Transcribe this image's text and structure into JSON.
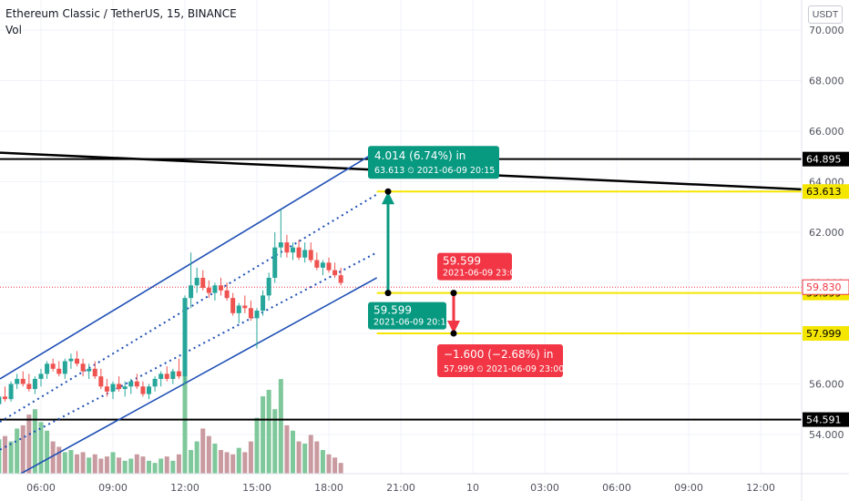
{
  "header": {
    "symbol_line": "Ethereum Classic / TetherUS, 15, BINANCE",
    "volume_label": "Vol"
  },
  "currency_label": "USDT",
  "colors": {
    "up": "#26a69a",
    "down": "#ef5350",
    "vol_up": "#7fc89b",
    "vol_down": "#c99aa0",
    "channel": "#1e4fb5",
    "horizontal": "#000000",
    "yellow": "#f5e600",
    "measure_up": "#089981",
    "measure_down": "#f23645",
    "last_price": "#f23645"
  },
  "chart_data": {
    "type": "candlestick",
    "symbol": "Ethereum Classic / TetherUS",
    "interval": "15",
    "exchange": "BINANCE",
    "ylim": [
      53.2,
      71.0
    ],
    "y_ticks": [
      "70.000",
      "68.000",
      "66.000",
      "64.000",
      "62.000",
      "60.000",
      "58.000",
      "56.000",
      "54.000"
    ],
    "x_ticks": [
      "06:00",
      "09:00",
      "12:00",
      "15:00",
      "18:00",
      "21:00",
      "10",
      "03:00",
      "06:00",
      "09:00",
      "12:00"
    ],
    "x_tick_hours": [
      6,
      9,
      12,
      15,
      18,
      21,
      24,
      27,
      30,
      33,
      36
    ],
    "x_range_hours": [
      3.7,
      37.5
    ],
    "candles": [
      {
        "t": 3.75,
        "o": 54.9,
        "h": 55.1,
        "l": 54.5,
        "c": 54.7
      },
      {
        "t": 4.0,
        "o": 54.7,
        "h": 55.3,
        "l": 54.6,
        "c": 55.2
      },
      {
        "t": 4.25,
        "o": 55.2,
        "h": 55.6,
        "l": 55.0,
        "c": 55.5
      },
      {
        "t": 4.5,
        "o": 55.5,
        "h": 55.9,
        "l": 55.3,
        "c": 55.4
      },
      {
        "t": 4.75,
        "o": 55.4,
        "h": 56.1,
        "l": 55.3,
        "c": 56.0
      },
      {
        "t": 5.0,
        "o": 56.0,
        "h": 56.4,
        "l": 55.8,
        "c": 56.2
      },
      {
        "t": 5.25,
        "o": 56.2,
        "h": 56.5,
        "l": 55.9,
        "c": 56.0
      },
      {
        "t": 5.5,
        "o": 56.0,
        "h": 56.4,
        "l": 55.7,
        "c": 55.8
      },
      {
        "t": 5.75,
        "o": 55.8,
        "h": 56.3,
        "l": 55.6,
        "c": 56.2
      },
      {
        "t": 6.0,
        "o": 56.2,
        "h": 56.6,
        "l": 55.9,
        "c": 56.4
      },
      {
        "t": 6.25,
        "o": 56.4,
        "h": 56.9,
        "l": 56.2,
        "c": 56.8
      },
      {
        "t": 6.5,
        "o": 56.8,
        "h": 57.0,
        "l": 56.5,
        "c": 56.6
      },
      {
        "t": 6.75,
        "o": 56.6,
        "h": 56.9,
        "l": 56.3,
        "c": 56.4
      },
      {
        "t": 7.0,
        "o": 56.4,
        "h": 57.0,
        "l": 56.2,
        "c": 56.9
      },
      {
        "t": 7.25,
        "o": 56.9,
        "h": 57.2,
        "l": 56.6,
        "c": 57.0
      },
      {
        "t": 7.5,
        "o": 57.0,
        "h": 57.3,
        "l": 56.7,
        "c": 56.8
      },
      {
        "t": 7.75,
        "o": 56.8,
        "h": 57.0,
        "l": 56.3,
        "c": 56.5
      },
      {
        "t": 8.0,
        "o": 56.5,
        "h": 56.8,
        "l": 56.2,
        "c": 56.6
      },
      {
        "t": 8.25,
        "o": 56.6,
        "h": 56.9,
        "l": 56.2,
        "c": 56.3
      },
      {
        "t": 8.5,
        "o": 56.3,
        "h": 56.6,
        "l": 55.8,
        "c": 55.9
      },
      {
        "t": 8.75,
        "o": 55.9,
        "h": 56.2,
        "l": 55.5,
        "c": 55.7
      },
      {
        "t": 9.0,
        "o": 55.7,
        "h": 56.1,
        "l": 55.4,
        "c": 56.0
      },
      {
        "t": 9.25,
        "o": 56.0,
        "h": 56.3,
        "l": 55.7,
        "c": 55.8
      },
      {
        "t": 9.5,
        "o": 55.8,
        "h": 56.1,
        "l": 55.5,
        "c": 55.9
      },
      {
        "t": 9.75,
        "o": 55.9,
        "h": 56.2,
        "l": 55.6,
        "c": 56.1
      },
      {
        "t": 10.0,
        "o": 56.1,
        "h": 56.4,
        "l": 55.8,
        "c": 55.9
      },
      {
        "t": 10.25,
        "o": 55.9,
        "h": 56.1,
        "l": 55.5,
        "c": 55.6
      },
      {
        "t": 10.5,
        "o": 55.6,
        "h": 56.0,
        "l": 55.4,
        "c": 55.9
      },
      {
        "t": 10.75,
        "o": 55.9,
        "h": 56.3,
        "l": 55.7,
        "c": 56.2
      },
      {
        "t": 11.0,
        "o": 56.2,
        "h": 56.5,
        "l": 55.9,
        "c": 56.4
      },
      {
        "t": 11.25,
        "o": 56.4,
        "h": 56.7,
        "l": 56.1,
        "c": 56.2
      },
      {
        "t": 11.5,
        "o": 56.2,
        "h": 56.6,
        "l": 56.0,
        "c": 56.5
      },
      {
        "t": 11.75,
        "o": 56.5,
        "h": 57.0,
        "l": 56.2,
        "c": 56.3
      },
      {
        "t": 12.0,
        "o": 56.3,
        "h": 59.5,
        "l": 56.0,
        "c": 59.4
      },
      {
        "t": 12.25,
        "o": 59.4,
        "h": 61.2,
        "l": 59.0,
        "c": 59.9
      },
      {
        "t": 12.5,
        "o": 59.9,
        "h": 60.6,
        "l": 59.6,
        "c": 60.2
      },
      {
        "t": 12.75,
        "o": 60.2,
        "h": 60.5,
        "l": 59.7,
        "c": 59.8
      },
      {
        "t": 13.0,
        "o": 59.8,
        "h": 60.1,
        "l": 59.4,
        "c": 59.6
      },
      {
        "t": 13.25,
        "o": 59.6,
        "h": 60.0,
        "l": 59.3,
        "c": 59.9
      },
      {
        "t": 13.5,
        "o": 59.9,
        "h": 60.2,
        "l": 59.5,
        "c": 59.7
      },
      {
        "t": 13.75,
        "o": 59.7,
        "h": 60.0,
        "l": 59.3,
        "c": 59.4
      },
      {
        "t": 14.0,
        "o": 59.4,
        "h": 59.6,
        "l": 58.7,
        "c": 58.8
      },
      {
        "t": 14.25,
        "o": 58.8,
        "h": 59.2,
        "l": 58.4,
        "c": 59.1
      },
      {
        "t": 14.5,
        "o": 59.1,
        "h": 59.5,
        "l": 58.8,
        "c": 59.0
      },
      {
        "t": 14.75,
        "o": 59.0,
        "h": 59.3,
        "l": 58.5,
        "c": 58.6
      },
      {
        "t": 15.0,
        "o": 58.6,
        "h": 59.0,
        "l": 57.4,
        "c": 58.9
      },
      {
        "t": 15.25,
        "o": 58.9,
        "h": 59.7,
        "l": 58.7,
        "c": 59.5
      },
      {
        "t": 15.5,
        "o": 59.5,
        "h": 60.4,
        "l": 59.3,
        "c": 60.2
      },
      {
        "t": 15.75,
        "o": 60.2,
        "h": 62.0,
        "l": 60.0,
        "c": 61.4
      },
      {
        "t": 16.0,
        "o": 61.4,
        "h": 62.9,
        "l": 61.0,
        "c": 61.6
      },
      {
        "t": 16.25,
        "o": 61.6,
        "h": 61.9,
        "l": 61.0,
        "c": 61.2
      },
      {
        "t": 16.5,
        "o": 61.2,
        "h": 61.6,
        "l": 60.9,
        "c": 61.4
      },
      {
        "t": 16.75,
        "o": 61.4,
        "h": 61.7,
        "l": 60.9,
        "c": 61.0
      },
      {
        "t": 17.0,
        "o": 61.0,
        "h": 61.6,
        "l": 60.8,
        "c": 61.3
      },
      {
        "t": 17.25,
        "o": 61.3,
        "h": 61.6,
        "l": 60.8,
        "c": 60.9
      },
      {
        "t": 17.5,
        "o": 60.9,
        "h": 61.2,
        "l": 60.5,
        "c": 60.6
      },
      {
        "t": 17.75,
        "o": 60.6,
        "h": 60.9,
        "l": 60.3,
        "c": 60.8
      },
      {
        "t": 18.0,
        "o": 60.8,
        "h": 61.0,
        "l": 60.4,
        "c": 60.5
      },
      {
        "t": 18.25,
        "o": 60.5,
        "h": 60.8,
        "l": 60.2,
        "c": 60.3
      },
      {
        "t": 18.5,
        "o": 60.3,
        "h": 60.6,
        "l": 59.9,
        "c": 60.0
      }
    ],
    "volume_relative": [
      0.3,
      0.28,
      0.32,
      0.35,
      0.3,
      0.42,
      0.45,
      0.55,
      0.6,
      0.48,
      0.4,
      0.3,
      0.25,
      0.2,
      0.22,
      0.18,
      0.2,
      0.15,
      0.18,
      0.14,
      0.16,
      0.2,
      0.15,
      0.12,
      0.14,
      0.18,
      0.16,
      0.12,
      0.1,
      0.14,
      0.16,
      0.12,
      0.18,
      1.0,
      0.22,
      0.3,
      0.42,
      0.35,
      0.28,
      0.22,
      0.2,
      0.18,
      0.24,
      0.2,
      0.3,
      0.52,
      0.72,
      0.78,
      0.6,
      0.88,
      0.45,
      0.4,
      0.3,
      0.28,
      0.36,
      0.3,
      0.22,
      0.18,
      0.15,
      0.1
    ],
    "horizontal_levels": [
      {
        "price": 64.895,
        "label": "64.895",
        "style": "black"
      },
      {
        "price": 54.591,
        "label": "54.591",
        "style": "black"
      },
      {
        "price": 63.613,
        "label": "63.613",
        "style": "yellow"
      },
      {
        "price": 59.599,
        "label": "59.599",
        "style": "yellow"
      },
      {
        "price": 57.999,
        "label": "57.999",
        "style": "yellow"
      }
    ],
    "last_price": {
      "price": 59.83,
      "label": "59.830"
    },
    "measurements": [
      {
        "direction": "up",
        "from": {
          "price": 59.599,
          "time": "2021-06-09 20:15",
          "label": "59.599"
        },
        "to": {
          "price": 63.613,
          "time": "2021-06-09 20:15"
        },
        "headline": "4.014 (6.74%) in",
        "detail_price": "63.613",
        "detail_time": "2021-06-09  20:15"
      },
      {
        "direction": "down",
        "from": {
          "price": 59.599,
          "time": "2021-06-09 23:00",
          "label": "59.599"
        },
        "to": {
          "price": 57.999,
          "time": "2021-06-09 23:00"
        },
        "headline": "−1.600 (−2.68%) in",
        "detail_price": "57.999",
        "detail_time": "2021-06-09  23:00"
      }
    ],
    "start_labels": {
      "up_time": "2021-06-09 20:15",
      "down_time": "2021-06-09 23:00"
    }
  }
}
